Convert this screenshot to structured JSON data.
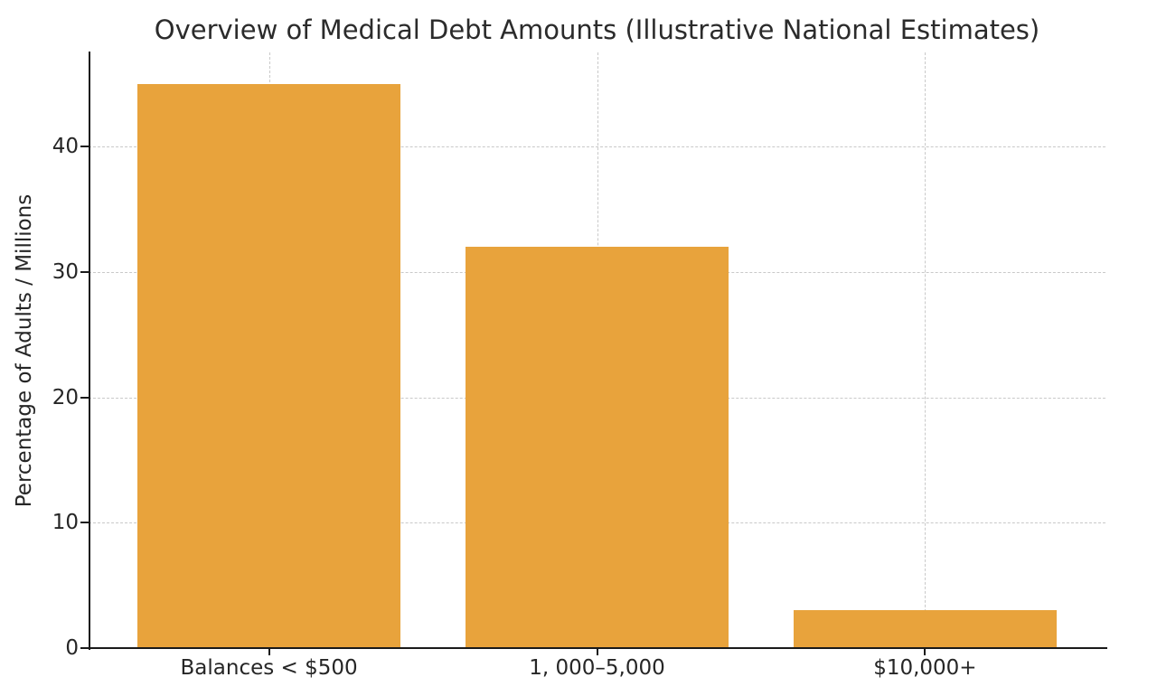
{
  "chart_data": {
    "type": "bar",
    "title": "Overview of Medical Debt Amounts (Illustrative National Estimates)",
    "xlabel": "",
    "ylabel": "Percentage of Adults / Millions",
    "categories": [
      "Balances < $500",
      "1, 000–5,000",
      "$10,000+"
    ],
    "values": [
      45,
      32,
      3
    ],
    "yticks": [
      0,
      10,
      20,
      30,
      40
    ],
    "ylim": [
      0,
      47.5
    ],
    "bar_color": "#E8A33C",
    "grid_color": "#c9c9c9",
    "grid_style": "dashed",
    "grid_axes": "both",
    "legend": "none",
    "background_color": "#ffffff",
    "text_color": "#262626",
    "spine_color": "#1a1a1a"
  }
}
